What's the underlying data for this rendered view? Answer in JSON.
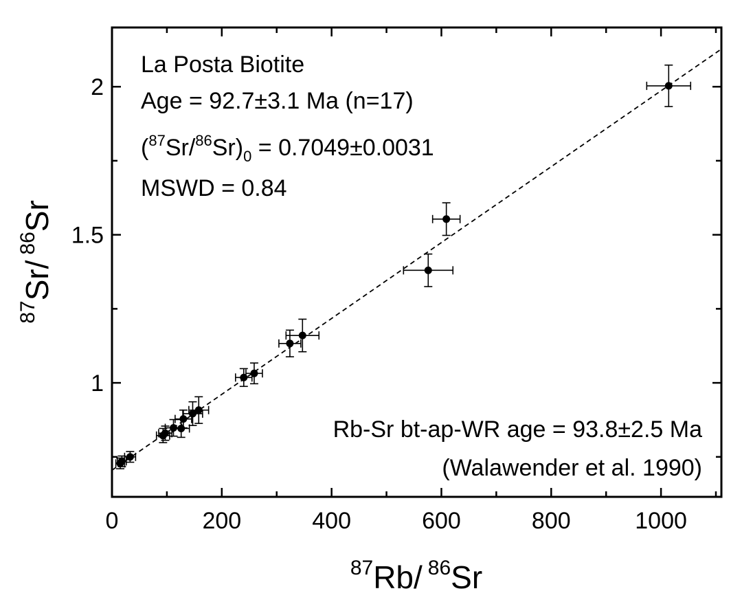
{
  "chart_data": {
    "type": "scatter",
    "xlabel": {
      "pre_sup": "87",
      "main": "Rb/",
      "sup2": "86",
      "post": "Sr"
    },
    "ylabel": {
      "pre_sup": "87",
      "main": "Sr/",
      "sup2": "86",
      "post": "Sr"
    },
    "xlim": [
      0,
      1110
    ],
    "ylim": [
      0.615,
      2.2
    ],
    "xticks": [
      0,
      200,
      400,
      600,
      800,
      1000
    ],
    "yticks": [
      1,
      1.5,
      2
    ],
    "xtick_labels": [
      "0",
      "200",
      "400",
      "600",
      "800",
      "1000"
    ],
    "ytick_labels": [
      "1",
      "1.5",
      "2"
    ],
    "annotation_top": {
      "line1": "La Posta Biotite",
      "line2": "Age = 92.7±3.1 Ma (n=17)",
      "line3_parts": [
        "(",
        "87",
        "Sr/",
        "86",
        "Sr)",
        "0",
        " = 0.7049±0.0031"
      ],
      "line4": "MSWD = 0.84"
    },
    "annotation_bottom": {
      "line1": "Rb-Sr bt-ap-WR age = 93.8±2.5 Ma",
      "line2": "(Walawender et al. 1990)"
    },
    "isochron": {
      "intercept": 0.7049,
      "slope": 0.0012813,
      "style": "dashed"
    },
    "points": [
      {
        "x": 15,
        "y": 0.728,
        "xerr": 8,
        "yerr": 0.018
      },
      {
        "x": 18,
        "y": 0.735,
        "xerr": 8,
        "yerr": 0.018
      },
      {
        "x": 33,
        "y": 0.75,
        "xerr": 10,
        "yerr": 0.018
      },
      {
        "x": 93,
        "y": 0.822,
        "xerr": 12,
        "yerr": 0.024
      },
      {
        "x": 97,
        "y": 0.83,
        "xerr": 12,
        "yerr": 0.024
      },
      {
        "x": 112,
        "y": 0.848,
        "xerr": 15,
        "yerr": 0.028
      },
      {
        "x": 126,
        "y": 0.846,
        "xerr": 15,
        "yerr": 0.03
      },
      {
        "x": 130,
        "y": 0.878,
        "xerr": 15,
        "yerr": 0.03
      },
      {
        "x": 147,
        "y": 0.896,
        "xerr": 18,
        "yerr": 0.04
      },
      {
        "x": 158,
        "y": 0.908,
        "xerr": 18,
        "yerr": 0.045
      },
      {
        "x": 240,
        "y": 1.018,
        "xerr": 15,
        "yerr": 0.03
      },
      {
        "x": 259,
        "y": 1.032,
        "xerr": 15,
        "yerr": 0.035
      },
      {
        "x": 324,
        "y": 1.133,
        "xerr": 20,
        "yerr": 0.045
      },
      {
        "x": 347,
        "y": 1.16,
        "xerr": 30,
        "yerr": 0.055
      },
      {
        "x": 576,
        "y": 1.38,
        "xerr": 45,
        "yerr": 0.055
      },
      {
        "x": 609,
        "y": 1.553,
        "xerr": 25,
        "yerr": 0.055
      },
      {
        "x": 1014,
        "y": 2.003,
        "xerr": 40,
        "yerr": 0.07
      }
    ]
  }
}
